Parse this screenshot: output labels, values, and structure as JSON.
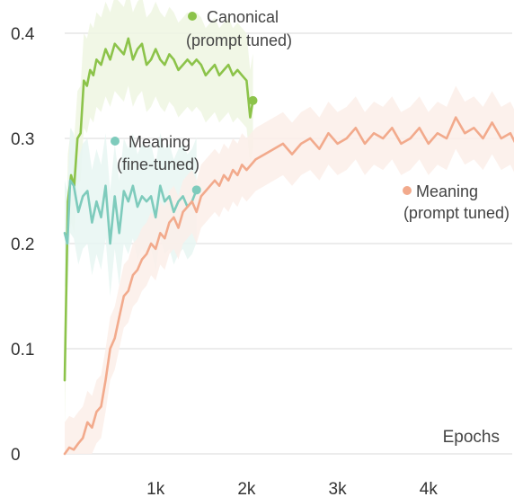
{
  "chart_data": {
    "type": "line",
    "title": "",
    "xlabel": "Epochs",
    "ylabel": "",
    "xlim": [
      0,
      5000
    ],
    "ylim": [
      0,
      0.42
    ],
    "grid": true,
    "colors": {
      "green": "#8cc34a",
      "teal": "#7ecbbc",
      "salmon": "#f2aa8c",
      "grid": "#e1e1e1"
    },
    "x_ticks": [
      {
        "value": 1000,
        "label": "1k"
      },
      {
        "value": 2000,
        "label": "2k"
      },
      {
        "value": 3000,
        "label": "3k"
      },
      {
        "value": 4000,
        "label": "4k"
      }
    ],
    "y_ticks": [
      {
        "value": 0,
        "label": "0"
      },
      {
        "value": 0.1,
        "label": "0.1"
      },
      {
        "value": 0.2,
        "label": "0.2"
      },
      {
        "value": 0.3,
        "label": "0.3"
      },
      {
        "value": 0.4,
        "label": "0.4"
      }
    ],
    "series": [
      {
        "key": "canonical",
        "name": "Canonical (prompt tuned)",
        "label_lines": [
          "Canonical",
          "(prompt tuned)"
        ],
        "color": "#8cc34a",
        "band_color": "#eef6e2",
        "x": [
          0,
          35,
          70,
          105,
          140,
          175,
          210,
          245,
          280,
          315,
          350,
          400,
          450,
          500,
          550,
          600,
          650,
          700,
          750,
          800,
          850,
          900,
          950,
          1000,
          1050,
          1100,
          1150,
          1200,
          1250,
          1300,
          1350,
          1400,
          1450,
          1500,
          1550,
          1600,
          1650,
          1700,
          1750,
          1800,
          1850,
          1900,
          1950,
          2000,
          2040,
          2070
        ],
        "y": [
          0.07,
          0.24,
          0.265,
          0.255,
          0.3,
          0.305,
          0.355,
          0.35,
          0.365,
          0.36,
          0.375,
          0.37,
          0.385,
          0.375,
          0.39,
          0.385,
          0.38,
          0.395,
          0.375,
          0.385,
          0.39,
          0.37,
          0.375,
          0.385,
          0.375,
          0.37,
          0.38,
          0.375,
          0.365,
          0.37,
          0.375,
          0.37,
          0.375,
          0.37,
          0.36,
          0.365,
          0.37,
          0.36,
          0.365,
          0.37,
          0.36,
          0.365,
          0.36,
          0.355,
          0.32,
          0.336
        ],
        "band_width": 0.045
      },
      {
        "key": "meaning_ft",
        "name": "Meaning (fine-tuned)",
        "label_lines": [
          "Meaning",
          "(fine-tuned)"
        ],
        "color": "#7ecbbc",
        "band_color": "#e8f6f2",
        "x": [
          0,
          30,
          60,
          100,
          150,
          200,
          250,
          300,
          350,
          400,
          450,
          500,
          550,
          600,
          650,
          700,
          750,
          800,
          850,
          900,
          950,
          1000,
          1050,
          1100,
          1150,
          1200,
          1250,
          1300,
          1350,
          1400,
          1450
        ],
        "y": [
          0.21,
          0.2,
          0.26,
          0.255,
          0.23,
          0.245,
          0.25,
          0.22,
          0.24,
          0.225,
          0.255,
          0.2,
          0.245,
          0.21,
          0.25,
          0.24,
          0.255,
          0.235,
          0.245,
          0.24,
          0.245,
          0.225,
          0.255,
          0.24,
          0.245,
          0.23,
          0.24,
          0.245,
          0.235,
          0.24,
          0.251
        ],
        "band_width": 0.05
      },
      {
        "key": "meaning_pt",
        "name": "Meaning (prompt tuned)",
        "label_lines": [
          "Meaning",
          "(prompt tuned)"
        ],
        "color": "#f2aa8c",
        "band_color": "#fcefe9",
        "x": [
          0,
          50,
          100,
          150,
          200,
          250,
          300,
          350,
          400,
          450,
          500,
          550,
          600,
          650,
          700,
          750,
          800,
          850,
          900,
          950,
          1000,
          1050,
          1100,
          1150,
          1200,
          1250,
          1300,
          1350,
          1400,
          1450,
          1500,
          1550,
          1600,
          1650,
          1700,
          1750,
          1800,
          1850,
          1900,
          1950,
          2000,
          2100,
          2200,
          2300,
          2400,
          2500,
          2600,
          2700,
          2800,
          2900,
          3000,
          3100,
          3200,
          3300,
          3400,
          3500,
          3600,
          3700,
          3800,
          3900,
          4000,
          4100,
          4200,
          4300,
          4400,
          4500,
          4600,
          4700,
          4800,
          4900,
          5000
        ],
        "y": [
          0.0,
          0.006,
          0.004,
          0.01,
          0.015,
          0.03,
          0.025,
          0.04,
          0.045,
          0.07,
          0.1,
          0.11,
          0.13,
          0.15,
          0.155,
          0.17,
          0.175,
          0.185,
          0.19,
          0.2,
          0.195,
          0.21,
          0.205,
          0.22,
          0.225,
          0.215,
          0.23,
          0.235,
          0.24,
          0.23,
          0.245,
          0.25,
          0.255,
          0.26,
          0.255,
          0.265,
          0.26,
          0.27,
          0.265,
          0.275,
          0.27,
          0.28,
          0.285,
          0.29,
          0.295,
          0.285,
          0.295,
          0.3,
          0.29,
          0.305,
          0.295,
          0.3,
          0.31,
          0.295,
          0.305,
          0.3,
          0.31,
          0.295,
          0.3,
          0.31,
          0.295,
          0.305,
          0.3,
          0.32,
          0.305,
          0.31,
          0.3,
          0.315,
          0.3,
          0.305,
          0.288
        ],
        "band_width": 0.03
      }
    ]
  }
}
